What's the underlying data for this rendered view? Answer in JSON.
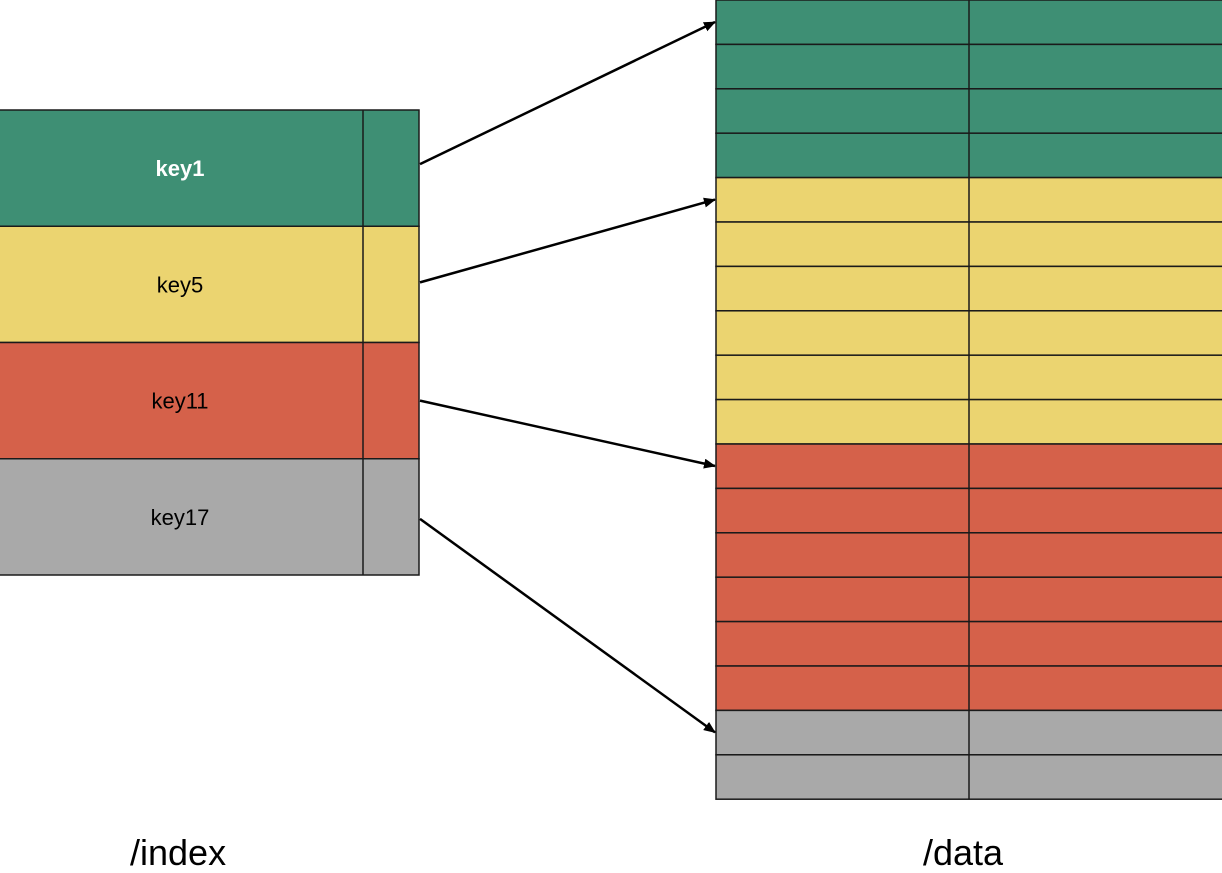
{
  "colors": {
    "green": "#3e8f74",
    "yellow": "#ebd470",
    "red": "#d5614a",
    "gray": "#a9a9a9",
    "border": "#1a1a1a",
    "arrow": "#000000"
  },
  "index": {
    "caption": "/index",
    "entries": [
      {
        "key": "key1",
        "color": "green",
        "bold": true,
        "text_color": "#ffffff"
      },
      {
        "key": "key5",
        "color": "yellow",
        "bold": false,
        "text_color": "#000000"
      },
      {
        "key": "key11",
        "color": "red",
        "bold": false,
        "text_color": "#000000"
      },
      {
        "key": "key17",
        "color": "gray",
        "bold": false,
        "text_color": "#000000"
      }
    ]
  },
  "data": {
    "caption": "/data",
    "blocks": [
      {
        "color": "green",
        "rows": 4
      },
      {
        "color": "yellow",
        "rows": 6
      },
      {
        "color": "red",
        "rows": 6
      },
      {
        "color": "gray",
        "rows": 2
      }
    ]
  },
  "pointers": [
    {
      "from_entry": 0,
      "to_block": 0
    },
    {
      "from_entry": 1,
      "to_block": 1
    },
    {
      "from_entry": 2,
      "to_block": 2
    },
    {
      "from_entry": 3,
      "to_block": 3
    }
  ]
}
